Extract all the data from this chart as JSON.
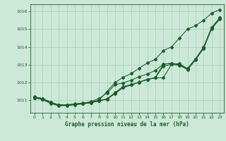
{
  "title": "Graphe pression niveau de la mer (hPa)",
  "background_color": "#cce8d8",
  "grid_color": "#aaccbb",
  "line_color": "#1a5c2a",
  "x_ticks": [
    0,
    1,
    2,
    3,
    4,
    5,
    6,
    7,
    8,
    9,
    10,
    11,
    12,
    13,
    14,
    15,
    16,
    17,
    18,
    19,
    20,
    21,
    22,
    23
  ],
  "ylim": [
    1010.3,
    1016.4
  ],
  "yticks": [
    1011,
    1012,
    1013,
    1014,
    1015,
    1016
  ],
  "series": [
    [
      1011.15,
      1011.05,
      1010.85,
      1010.72,
      1010.72,
      1010.77,
      1010.82,
      1010.87,
      1010.97,
      1011.07,
      1011.37,
      1011.72,
      1011.87,
      1012.02,
      1012.17,
      1012.27,
      1012.27,
      1013.02,
      1013.07,
      1012.77,
      1013.32,
      1013.97,
      1015.07,
      1015.62
    ],
    [
      1011.15,
      1011.05,
      1010.82,
      1010.7,
      1010.7,
      1010.75,
      1010.8,
      1010.87,
      1010.97,
      1011.07,
      1011.42,
      1011.72,
      1011.87,
      1012.02,
      1012.17,
      1012.27,
      1012.92,
      1013.02,
      1012.97,
      1012.72,
      1013.27,
      1013.92,
      1015.02,
      1015.57
    ],
    [
      1011.15,
      1011.07,
      1010.88,
      1010.73,
      1010.73,
      1010.78,
      1010.83,
      1010.88,
      1010.98,
      1011.08,
      1011.43,
      1011.78,
      1011.88,
      1012.03,
      1012.18,
      1012.28,
      1013.03,
      1013.08,
      1013.03,
      1012.78,
      1013.33,
      1013.98,
      1015.08,
      1015.63
    ],
    [
      1011.18,
      1011.1,
      1010.88,
      1010.73,
      1010.73,
      1010.78,
      1010.83,
      1010.93,
      1011.1,
      1011.42,
      1011.88,
      1011.98,
      1012.13,
      1012.33,
      1012.48,
      1012.68,
      1013.03,
      1013.08,
      1012.98,
      1012.78,
      1013.33,
      1013.98,
      1015.08,
      1015.63
    ]
  ],
  "series_top": [
    1011.2,
    1011.1,
    1010.9,
    1010.75,
    1010.75,
    1010.8,
    1010.85,
    1010.9,
    1011.0,
    1011.5,
    1012.0,
    1012.3,
    1012.5,
    1012.8,
    1013.1,
    1013.3,
    1013.8,
    1014.0,
    1014.5,
    1015.0,
    1015.2,
    1015.5,
    1015.9,
    1016.1
  ]
}
